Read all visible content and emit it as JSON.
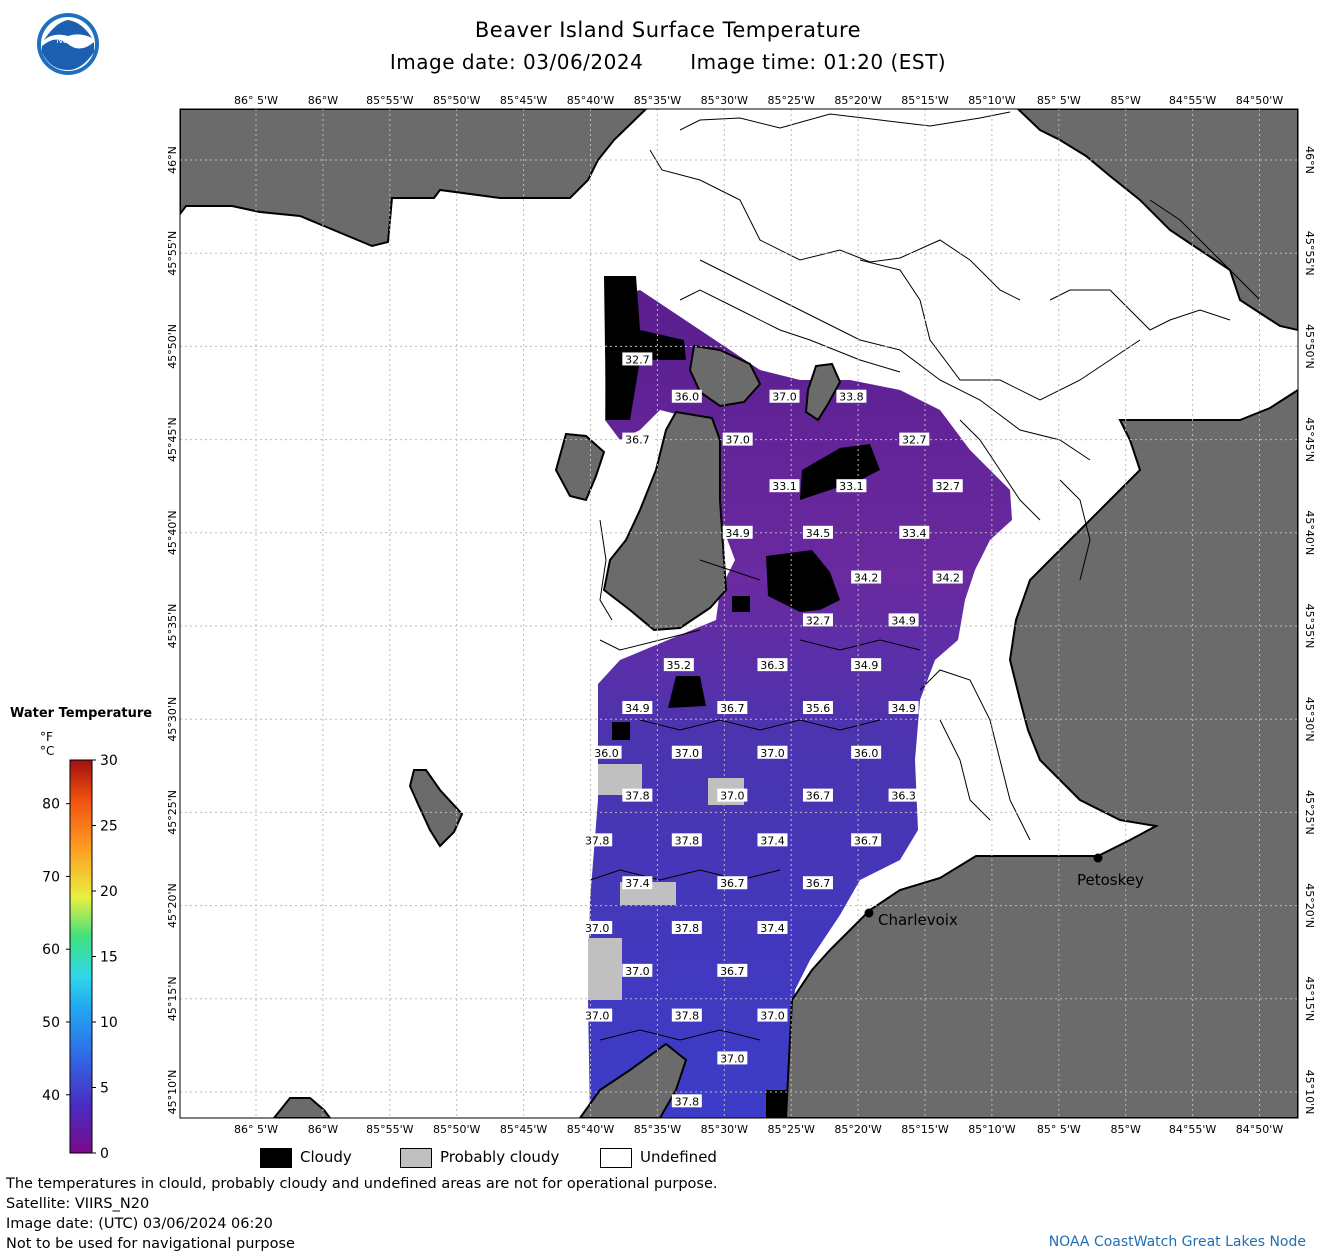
{
  "header": {
    "title": "Beaver Island Surface Temperature",
    "image_date": "Image date: 03/06/2024",
    "image_time": "Image time: 01:20 (EST)"
  },
  "map": {
    "lon_ticks": [
      "86° 5'W",
      "86°W",
      "85°55'W",
      "85°50'W",
      "85°45'W",
      "85°40'W",
      "85°35'W",
      "85°30'W",
      "85°25'W",
      "85°20'W",
      "85°15'W",
      "85°10'W",
      "85° 5'W",
      "85°W",
      "84°55'W",
      "84°50'W"
    ],
    "lat_ticks": [
      "46°N",
      "45°55'N",
      "45°50'N",
      "45°45'N",
      "45°40'N",
      "45°35'N",
      "45°30'N",
      "45°25'N",
      "45°20'N",
      "45°15'N",
      "45°10'N"
    ],
    "temperature_labels": [
      {
        "text": "32.7",
        "lon": "85°36.5'W",
        "lat": "45°49.3'N"
      },
      {
        "text": "36.0",
        "lon": "85°32.8'W",
        "lat": "45°47.3'N"
      },
      {
        "text": "37.0",
        "lon": "85°25.5'W",
        "lat": "45°47.3'N"
      },
      {
        "text": "33.8",
        "lon": "85°20.5'W",
        "lat": "45°47.3'N"
      },
      {
        "text": "36.7",
        "lon": "85°36.5'W",
        "lat": "45°45'N"
      },
      {
        "text": "37.0",
        "lon": "85°29'W",
        "lat": "45°45'N"
      },
      {
        "text": "32.7",
        "lon": "85°15.8'W",
        "lat": "45°45'N"
      },
      {
        "text": "33.1",
        "lon": "85°25.5'W",
        "lat": "45°42.5'N"
      },
      {
        "text": "33.1",
        "lon": "85°20.5'W",
        "lat": "45°42.5'N"
      },
      {
        "text": "32.7",
        "lon": "85°13.3'W",
        "lat": "45°42.5'N"
      },
      {
        "text": "34.9",
        "lon": "85°29'W",
        "lat": "45°40'N"
      },
      {
        "text": "34.5",
        "lon": "85°23'W",
        "lat": "45°40'N"
      },
      {
        "text": "33.4",
        "lon": "85°15.8'W",
        "lat": "45°40'N"
      },
      {
        "text": "34.2",
        "lon": "85°19.4'W",
        "lat": "45°37.6'N"
      },
      {
        "text": "34.2",
        "lon": "85°13.3'W",
        "lat": "45°37.6'N"
      },
      {
        "text": "32.7",
        "lon": "85°23'W",
        "lat": "45°35.3'N"
      },
      {
        "text": "34.9",
        "lon": "85°16.6'W",
        "lat": "45°35.3'N"
      },
      {
        "text": "35.2",
        "lon": "85°33.4'W",
        "lat": "45°32.9'N"
      },
      {
        "text": "36.3",
        "lon": "85°26.4'W",
        "lat": "45°32.9'N"
      },
      {
        "text": "34.9",
        "lon": "85°19.4'W",
        "lat": "45°32.9'N"
      },
      {
        "text": "34.9",
        "lon": "85°36.5'W",
        "lat": "45°30.6'N"
      },
      {
        "text": "36.7",
        "lon": "85°29.4'W",
        "lat": "45°30.6'N"
      },
      {
        "text": "35.6",
        "lon": "85°23'W",
        "lat": "45°30.6'N"
      },
      {
        "text": "34.9",
        "lon": "85°16.6'W",
        "lat": "45°30.6'N"
      },
      {
        "text": "36.0",
        "lon": "85°38.8'W",
        "lat": "45°28.2'N"
      },
      {
        "text": "37.0",
        "lon": "85°32.8'W",
        "lat": "45°28.2'N"
      },
      {
        "text": "37.0",
        "lon": "85°26.4'W",
        "lat": "45°28.2'N"
      },
      {
        "text": "36.0",
        "lon": "85°19.4'W",
        "lat": "45°28.2'N"
      },
      {
        "text": "37.8",
        "lon": "85°36.5'W",
        "lat": "45°25.9'N"
      },
      {
        "text": "37.0",
        "lon": "85°29.4'W",
        "lat": "45°25.9'N"
      },
      {
        "text": "36.7",
        "lon": "85°23'W",
        "lat": "45°25.9'N"
      },
      {
        "text": "36.3",
        "lon": "85°16.6'W",
        "lat": "45°25.9'N"
      },
      {
        "text": "37.8",
        "lon": "85°39.5'W",
        "lat": "45°23.5'N"
      },
      {
        "text": "37.8",
        "lon": "85°32.8'W",
        "lat": "45°23.5'N"
      },
      {
        "text": "37.4",
        "lon": "85°26.4'W",
        "lat": "45°23.5'N"
      },
      {
        "text": "36.7",
        "lon": "85°19.4'W",
        "lat": "45°23.5'N"
      },
      {
        "text": "37.4",
        "lon": "85°36.5'W",
        "lat": "45°21.2'N"
      },
      {
        "text": "36.7",
        "lon": "85°29.4'W",
        "lat": "45°21.2'N"
      },
      {
        "text": "36.7",
        "lon": "85°23'W",
        "lat": "45°21.2'N"
      },
      {
        "text": "37.0",
        "lon": "85°39.5'W",
        "lat": "45°18.8'N"
      },
      {
        "text": "37.8",
        "lon": "85°32.8'W",
        "lat": "45°18.8'N"
      },
      {
        "text": "37.4",
        "lon": "85°26.4'W",
        "lat": "45°18.8'N"
      },
      {
        "text": "37.0",
        "lon": "85°36.5'W",
        "lat": "45°16.5'N"
      },
      {
        "text": "36.7",
        "lon": "85°29.4'W",
        "lat": "45°16.5'N"
      },
      {
        "text": "37.0",
        "lon": "85°39.5'W",
        "lat": "45°14.1'N"
      },
      {
        "text": "37.8",
        "lon": "85°32.8'W",
        "lat": "45°14.1'N"
      },
      {
        "text": "37.0",
        "lon": "85°26.4'W",
        "lat": "45°14.1'N"
      },
      {
        "text": "37.0",
        "lon": "85°29.4'W",
        "lat": "45°11.8'N"
      },
      {
        "text": "37.8",
        "lon": "85°32.8'W",
        "lat": "45°9.5'N"
      }
    ],
    "cities": [
      {
        "name": "Charlevoix"
      },
      {
        "name": "Petoskey"
      }
    ],
    "colors": {
      "land": "#6b6b6b",
      "water_background": "#ffffff",
      "cloudy": "#000000",
      "probably_cloudy": "#c0c0c0",
      "grid": "#bbbbbb"
    }
  },
  "legend": {
    "title": "Water Temperature",
    "unit_f": "°F",
    "unit_c": "°C",
    "f_ticks": [
      "80",
      "70",
      "60",
      "50",
      "40"
    ],
    "c_ticks": [
      "30",
      "25",
      "20",
      "15",
      "10",
      "5",
      "0"
    ],
    "scale_f_range": [
      32,
      86
    ],
    "scale_c_range": [
      0,
      30
    ]
  },
  "key": {
    "cloudy": "Cloudy",
    "probably_cloudy": "Probably cloudy",
    "undefined": "Undefined"
  },
  "footer": {
    "line1": "The temperatures in clould, probably cloudy and undefined areas are not for operational purpose.",
    "line2": "Satellite: VIIRS_N20",
    "line3": "Image date: (UTC) 03/06/2024  06:20",
    "line4": "Not to be used for navigational purpose",
    "credit": "NOAA CoastWatch Great Lakes Node"
  }
}
